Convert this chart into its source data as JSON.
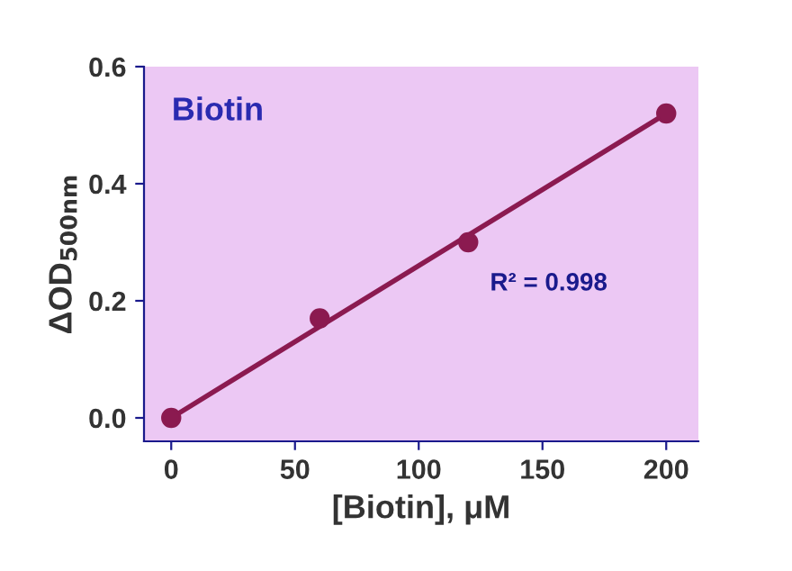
{
  "chart_data": {
    "type": "scatter",
    "title": "Biotin",
    "xlabel": "[Biotin], μM",
    "ylabel": "ΔOD$_{500nm}$",
    "xlim": [
      -11,
      213
    ],
    "ylim": [
      -0.04,
      0.6
    ],
    "xticks": [
      0,
      50,
      100,
      150,
      200
    ],
    "yticks": [
      {
        "value": 0,
        "label": "0.0"
      },
      0.2,
      0.4,
      0.6
    ],
    "grid": false,
    "legend": false,
    "series": [
      {
        "color": "#8b1a50",
        "x": [
          0,
          60,
          120,
          200
        ],
        "values": [
          0,
          0.17,
          0.3,
          0.52
        ],
        "marker": "circle"
      },
      {
        "type": "line",
        "color": "#8b1a50",
        "x": [
          0,
          200
        ],
        "values": [
          0,
          0.52
        ],
        "line_style": "solid"
      }
    ],
    "annotations": [
      "R² = 0.998"
    ]
  }
}
